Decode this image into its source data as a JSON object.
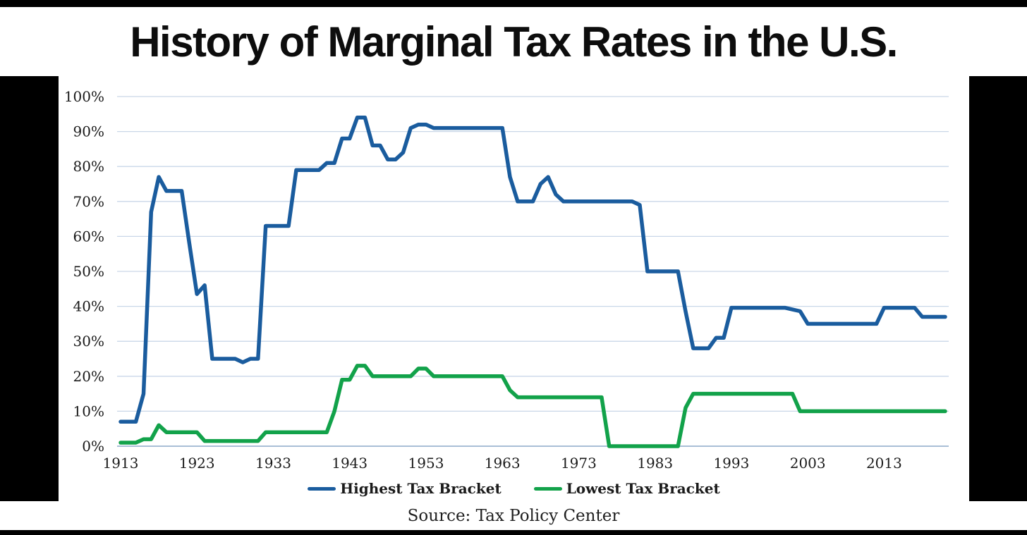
{
  "title": "History of Marginal Tax Rates in the U.S.",
  "source_text": "Source: Tax Policy Center",
  "colors": {
    "highest_line": "#1a5c9e",
    "lowest_line": "#12a24a",
    "gridline": "#c9d7e8",
    "axis_line": "#a9bed6",
    "label_text": "#1a1a1a",
    "frame": "#000000",
    "background": "#ffffff"
  },
  "legend": {
    "items": [
      {
        "label": "Highest Tax Bracket",
        "color": "#1a5c9e"
      },
      {
        "label": "Lowest Tax Bracket",
        "color": "#12a24a"
      }
    ]
  },
  "axes": {
    "y_tick_labels": [
      "0%",
      "10%",
      "20%",
      "30%",
      "40%",
      "50%",
      "60%",
      "70%",
      "80%",
      "90%",
      "100%"
    ],
    "y_tick_values": [
      0,
      10,
      20,
      30,
      40,
      50,
      60,
      70,
      80,
      90,
      100
    ],
    "x_tick_labels": [
      "1913",
      "1923",
      "1933",
      "1943",
      "1953",
      "1963",
      "1973",
      "1983",
      "1993",
      "2003",
      "2013"
    ],
    "x_tick_values": [
      1913,
      1923,
      1933,
      1943,
      1953,
      1963,
      1973,
      1983,
      1993,
      2003,
      2013
    ]
  },
  "chart_data": {
    "type": "line",
    "title": "History of Marginal Tax Rates in the U.S.",
    "xlabel": "",
    "ylabel": "",
    "ylim": [
      0,
      100
    ],
    "xlim": [
      1913,
      2021
    ],
    "grid": "horizontal",
    "legend_position": "bottom",
    "x": [
      1913,
      1914,
      1915,
      1916,
      1917,
      1918,
      1919,
      1920,
      1921,
      1922,
      1923,
      1924,
      1925,
      1926,
      1927,
      1928,
      1929,
      1930,
      1931,
      1932,
      1933,
      1934,
      1935,
      1936,
      1937,
      1938,
      1939,
      1940,
      1941,
      1942,
      1943,
      1944,
      1945,
      1946,
      1947,
      1948,
      1949,
      1950,
      1951,
      1952,
      1953,
      1954,
      1955,
      1956,
      1957,
      1958,
      1959,
      1960,
      1961,
      1962,
      1963,
      1964,
      1965,
      1966,
      1967,
      1968,
      1969,
      1970,
      1971,
      1972,
      1973,
      1974,
      1975,
      1976,
      1977,
      1978,
      1979,
      1980,
      1981,
      1982,
      1983,
      1984,
      1985,
      1986,
      1987,
      1988,
      1989,
      1990,
      1991,
      1992,
      1993,
      1994,
      1995,
      1996,
      1997,
      1998,
      1999,
      2000,
      2001,
      2002,
      2003,
      2004,
      2005,
      2006,
      2007,
      2008,
      2009,
      2010,
      2011,
      2012,
      2013,
      2014,
      2015,
      2016,
      2017,
      2018,
      2019,
      2020,
      2021
    ],
    "series": [
      {
        "name": "Highest Tax Bracket",
        "color": "#1a5c9e",
        "values": [
          7,
          7,
          7,
          15,
          67,
          77,
          73,
          73,
          73,
          58,
          43.5,
          46,
          25,
          25,
          25,
          25,
          24,
          25,
          25,
          63,
          63,
          63,
          63,
          79,
          79,
          79,
          79,
          81,
          81,
          88,
          88,
          94,
          94,
          86,
          86,
          82,
          82,
          84,
          91,
          92,
          92,
          91,
          91,
          91,
          91,
          91,
          91,
          91,
          91,
          91,
          91,
          77,
          70,
          70,
          70,
          75,
          77,
          72,
          70,
          70,
          70,
          70,
          70,
          70,
          70,
          70,
          70,
          70,
          69,
          50,
          50,
          50,
          50,
          50,
          38.5,
          28,
          28,
          28,
          31,
          31,
          39.6,
          39.6,
          39.6,
          39.6,
          39.6,
          39.6,
          39.6,
          39.6,
          39.1,
          38.6,
          35,
          35,
          35,
          35,
          35,
          35,
          35,
          35,
          35,
          35,
          39.6,
          39.6,
          39.6,
          39.6,
          39.6,
          37,
          37,
          37,
          37
        ]
      },
      {
        "name": "Lowest Tax Bracket",
        "color": "#12a24a",
        "values": [
          1,
          1,
          1,
          2,
          2,
          6,
          4,
          4,
          4,
          4,
          4,
          1.5,
          1.5,
          1.5,
          1.5,
          1.5,
          1.5,
          1.5,
          1.5,
          4,
          4,
          4,
          4,
          4,
          4,
          4,
          4,
          4,
          10,
          19,
          19,
          23,
          23,
          20,
          20,
          20,
          20,
          20,
          20,
          22.2,
          22.2,
          20,
          20,
          20,
          20,
          20,
          20,
          20,
          20,
          20,
          20,
          16,
          14,
          14,
          14,
          14,
          14,
          14,
          14,
          14,
          14,
          14,
          14,
          14,
          0,
          0,
          0,
          0,
          0,
          0,
          0,
          0,
          0,
          0,
          11,
          15,
          15,
          15,
          15,
          15,
          15,
          15,
          15,
          15,
          15,
          15,
          15,
          15,
          15,
          10,
          10,
          10,
          10,
          10,
          10,
          10,
          10,
          10,
          10,
          10,
          10,
          10,
          10,
          10,
          10,
          10,
          10,
          10,
          10
        ]
      }
    ]
  }
}
